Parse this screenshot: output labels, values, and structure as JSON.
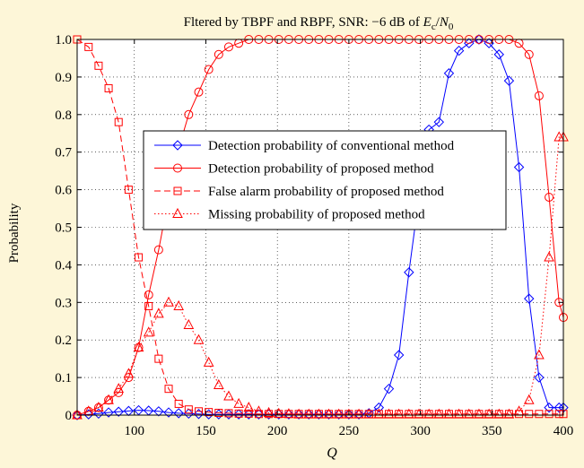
{
  "chart_data": {
    "type": "line",
    "title": "Fltered by TBPF and RBPF, SNR: −6 dB of ",
    "title_math": {
      "Ec_base": "E",
      "Ec_sub": "c",
      "slash": "/",
      "N0_base": "N",
      "N0_sub": "0"
    },
    "xlabel": "Q",
    "ylabel": "Probability",
    "xlim": [
      60,
      400
    ],
    "ylim": [
      0,
      1
    ],
    "x_ticks": [
      100,
      150,
      200,
      250,
      300,
      350,
      400
    ],
    "y_ticks": [
      0,
      0.1,
      0.2,
      0.3,
      0.4,
      0.5,
      0.6,
      0.7,
      0.8,
      0.9,
      1.0
    ],
    "y_tick_labels": [
      "0",
      "0.1",
      "0.2",
      "0.3",
      "0.4",
      "0.5",
      "0.6",
      "0.7",
      "0.8",
      "0.9",
      "1.0"
    ],
    "grid": true,
    "legend_position": "center-left",
    "x": [
      60,
      68,
      75,
      82,
      89,
      96,
      103,
      110,
      117,
      124,
      131,
      138,
      145,
      152,
      159,
      166,
      173,
      180,
      187,
      194,
      201,
      208,
      215,
      222,
      229,
      236,
      243,
      250,
      257,
      264,
      271,
      278,
      285,
      292,
      299,
      306,
      313,
      320,
      327,
      334,
      341,
      348,
      355,
      362,
      369,
      376,
      383,
      390,
      397,
      400
    ],
    "series": [
      {
        "name": "Detection probability of conventional method",
        "color": "#0000ff",
        "marker": "diamond",
        "dash": "solid",
        "values": [
          0.0,
          0.002,
          0.004,
          0.007,
          0.009,
          0.011,
          0.013,
          0.012,
          0.01,
          0.007,
          0.005,
          0.004,
          0.003,
          0.002,
          0.002,
          0.002,
          0.002,
          0.002,
          0.002,
          0.002,
          0.002,
          0.002,
          0.002,
          0.002,
          0.002,
          0.002,
          0.002,
          0.002,
          0.002,
          0.005,
          0.02,
          0.07,
          0.16,
          0.38,
          0.58,
          0.76,
          0.78,
          0.91,
          0.97,
          0.99,
          1.0,
          0.99,
          0.96,
          0.89,
          0.66,
          0.31,
          0.1,
          0.02,
          0.02,
          0.02
        ]
      },
      {
        "name": "Detection probability of proposed method",
        "color": "#ff0000",
        "marker": "circle",
        "dash": "solid",
        "values": [
          0.0,
          0.01,
          0.02,
          0.04,
          0.06,
          0.1,
          0.18,
          0.32,
          0.44,
          0.58,
          0.71,
          0.8,
          0.86,
          0.92,
          0.96,
          0.98,
          0.99,
          1.0,
          1.0,
          1.0,
          1.0,
          1.0,
          1.0,
          1.0,
          1.0,
          1.0,
          1.0,
          1.0,
          1.0,
          1.0,
          1.0,
          1.0,
          1.0,
          1.0,
          1.0,
          1.0,
          1.0,
          1.0,
          1.0,
          1.0,
          1.0,
          1.0,
          1.0,
          1.0,
          0.99,
          0.96,
          0.85,
          0.58,
          0.3,
          0.26
        ]
      },
      {
        "name": "False alarm probability of proposed method",
        "color": "#ff0000",
        "marker": "square",
        "dash": "dashed",
        "values": [
          1.0,
          0.98,
          0.93,
          0.87,
          0.78,
          0.6,
          0.42,
          0.29,
          0.15,
          0.07,
          0.03,
          0.015,
          0.01,
          0.008,
          0.006,
          0.005,
          0.004,
          0.004,
          0.003,
          0.003,
          0.003,
          0.003,
          0.003,
          0.003,
          0.003,
          0.003,
          0.003,
          0.003,
          0.003,
          0.003,
          0.003,
          0.003,
          0.003,
          0.003,
          0.003,
          0.003,
          0.003,
          0.003,
          0.003,
          0.003,
          0.003,
          0.003,
          0.003,
          0.003,
          0.003,
          0.003,
          0.003,
          0.003,
          0.003,
          0.003
        ]
      },
      {
        "name": "Missing probability of proposed method",
        "color": "#ff0000",
        "marker": "triangle",
        "dash": "dotted",
        "values": [
          0.0,
          0.01,
          0.02,
          0.04,
          0.07,
          0.11,
          0.18,
          0.22,
          0.27,
          0.3,
          0.29,
          0.24,
          0.2,
          0.14,
          0.08,
          0.05,
          0.03,
          0.02,
          0.01,
          0.006,
          0.004,
          0.003,
          0.002,
          0.002,
          0.002,
          0.002,
          0.002,
          0.002,
          0.002,
          0.002,
          0.002,
          0.002,
          0.002,
          0.002,
          0.002,
          0.002,
          0.002,
          0.002,
          0.002,
          0.002,
          0.002,
          0.002,
          0.002,
          0.002,
          0.01,
          0.04,
          0.16,
          0.42,
          0.74,
          0.74
        ]
      }
    ]
  }
}
